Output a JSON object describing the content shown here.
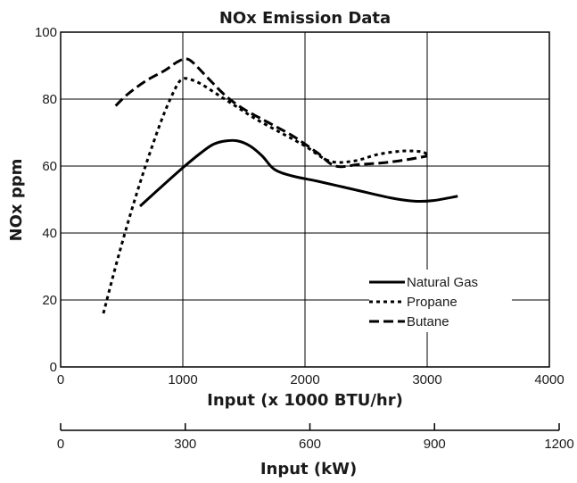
{
  "chart_data": {
    "type": "line",
    "title": "NOx Emission Data",
    "xlabel": "Input (x 1000 BTU/hr)",
    "ylabel": "NOx ppm",
    "xlim": [
      0,
      4000
    ],
    "ylim": [
      0,
      100
    ],
    "x_ticks": [
      0,
      1000,
      2000,
      3000,
      4000
    ],
    "y_ticks": [
      0,
      20,
      40,
      60,
      80,
      100
    ],
    "grid": true,
    "legend_position": "lower-right",
    "series": [
      {
        "name": "Natural Gas",
        "dash": "solid",
        "x": [
          650,
          800,
          1000,
          1150,
          1250,
          1350,
          1450,
          1550,
          1650,
          1750,
          1900,
          2100,
          2400,
          2700,
          2900,
          3050,
          3250
        ],
        "y": [
          48,
          53,
          59.5,
          64,
          66.5,
          67.5,
          67.5,
          66,
          63,
          59,
          57,
          55.5,
          53,
          50.5,
          49.5,
          49.7,
          51
        ]
      },
      {
        "name": "Propane",
        "dash": "dotted",
        "x": [
          350,
          450,
          550,
          650,
          750,
          850,
          950,
          1000,
          1050,
          1150,
          1300,
          1450,
          1600,
          1800,
          2000,
          2200,
          2400,
          2600,
          2800,
          2950,
          3000
        ],
        "y": [
          16,
          30,
          43,
          55,
          66,
          76,
          84,
          86,
          86,
          84.5,
          81,
          77.5,
          74,
          70,
          66,
          61.5,
          61.5,
          63.5,
          64.5,
          64.3,
          63.5
        ]
      },
      {
        "name": "Butane",
        "dash": "dashed",
        "x": [
          450,
          550,
          700,
          850,
          950,
          1020,
          1080,
          1200,
          1350,
          1500,
          1700,
          1900,
          2100,
          2250,
          2450,
          2650,
          2850,
          3000
        ],
        "y": [
          78,
          81.5,
          85.5,
          88.5,
          91,
          92,
          91,
          86.5,
          81,
          77,
          73,
          69,
          64,
          60,
          60.5,
          61,
          62,
          63
        ]
      }
    ]
  },
  "secondary_axis": {
    "label": "Input (kW)",
    "min": 0,
    "max": 1200,
    "ticks": [
      0,
      300,
      600,
      900,
      1200
    ]
  }
}
